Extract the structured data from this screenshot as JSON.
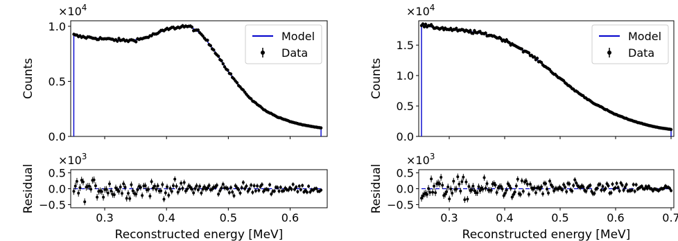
{
  "chart_data": [
    {
      "type": "line",
      "panel": "left-top",
      "ylabel": "Counts",
      "y_multiplier": "×10",
      "y_multiplier_exp": "4",
      "xlim": [
        0.245,
        0.66
      ],
      "ylim": [
        0,
        10500
      ],
      "yticks": [
        0,
        5000,
        10000
      ],
      "ytick_labels": [
        "0.0",
        "0.5",
        "1.0"
      ],
      "xticks": [
        0.3,
        0.4,
        0.5,
        0.6
      ],
      "legend_placement": "top-right",
      "legend": [
        "Model",
        "Data"
      ],
      "series": [
        {
          "name": "Model",
          "color": "#0000cc",
          "x": [
            0.25,
            0.26,
            0.28,
            0.3,
            0.32,
            0.34,
            0.36,
            0.38,
            0.4,
            0.42,
            0.43,
            0.44,
            0.45,
            0.46,
            0.48,
            0.5,
            0.52,
            0.54,
            0.56,
            0.58,
            0.6,
            0.62,
            0.64,
            0.65
          ],
          "y": [
            9200,
            9050,
            8950,
            8850,
            8750,
            8700,
            8850,
            9250,
            9700,
            9950,
            10000,
            9900,
            9550,
            9050,
            7600,
            5900,
            4400,
            3200,
            2350,
            1750,
            1350,
            1050,
            850,
            780
          ]
        },
        {
          "name": "Data",
          "color": "#000000",
          "x_range": [
            0.25,
            0.65
          ],
          "n_points": 160,
          "profile": "follows Model"
        }
      ]
    },
    {
      "type": "scatter",
      "panel": "left-bottom",
      "ylabel": "Residual",
      "y_multiplier": "×10",
      "y_multiplier_exp": "3",
      "xlabel": "Reconstructed energy [MeV]",
      "xlim": [
        0.245,
        0.66
      ],
      "ylim": [
        -600,
        600
      ],
      "yticks": [
        -500,
        0,
        500
      ],
      "ytick_labels": [
        "−0.5",
        "0.0",
        "0.5"
      ],
      "xticks": [
        0.3,
        0.4,
        0.5,
        0.6
      ],
      "xtick_labels": [
        "0.3",
        "0.4",
        "0.5",
        "0.6"
      ],
      "zero_line_color": "#0000cc",
      "series": [
        {
          "name": "Data",
          "color": "#000000",
          "x_range": [
            0.25,
            0.65
          ],
          "n_points": 160,
          "y_spread": 200
        }
      ]
    },
    {
      "type": "line",
      "panel": "right-top",
      "ylabel": "Counts",
      "y_multiplier": "×10",
      "y_multiplier_exp": "4",
      "xlim": [
        0.245,
        0.705
      ],
      "ylim": [
        0,
        19000
      ],
      "yticks": [
        0,
        5000,
        10000,
        15000
      ],
      "ytick_labels": [
        "0.0",
        "0.5",
        "1.0",
        "1.5"
      ],
      "xticks": [
        0.3,
        0.4,
        0.5,
        0.6,
        0.7
      ],
      "legend_placement": "top-right",
      "legend": [
        "Model",
        "Data"
      ],
      "series": [
        {
          "name": "Model",
          "color": "#0000cc",
          "x": [
            0.25,
            0.26,
            0.28,
            0.3,
            0.32,
            0.34,
            0.36,
            0.38,
            0.4,
            0.42,
            0.44,
            0.46,
            0.48,
            0.5,
            0.52,
            0.54,
            0.56,
            0.58,
            0.6,
            0.62,
            0.64,
            0.66,
            0.68,
            0.7
          ],
          "y": [
            18300,
            18100,
            17850,
            17600,
            17400,
            17200,
            16900,
            16500,
            15800,
            14900,
            13800,
            12500,
            11000,
            9500,
            8000,
            6700,
            5500,
            4500,
            3600,
            2900,
            2300,
            1800,
            1400,
            1150
          ]
        },
        {
          "name": "Data",
          "color": "#000000",
          "x_range": [
            0.25,
            0.7
          ],
          "n_points": 180,
          "profile": "follows Model"
        }
      ]
    },
    {
      "type": "scatter",
      "panel": "right-bottom",
      "ylabel": "Residual",
      "y_multiplier": "×10",
      "y_multiplier_exp": "3",
      "xlabel": "Reconstructed energy [MeV]",
      "xlim": [
        0.245,
        0.705
      ],
      "ylim": [
        -600,
        600
      ],
      "yticks": [
        -500,
        0,
        500
      ],
      "ytick_labels": [
        "−0.5",
        "0.0",
        "0.5"
      ],
      "xticks": [
        0.3,
        0.4,
        0.5,
        0.6,
        0.7
      ],
      "xtick_labels": [
        "0.3",
        "0.4",
        "0.5",
        "0.6",
        "0.7"
      ],
      "zero_line_color": "#0000cc",
      "series": [
        {
          "name": "Data",
          "color": "#000000",
          "x_range": [
            0.25,
            0.7
          ],
          "n_points": 180,
          "y_spread": 230
        }
      ]
    }
  ]
}
